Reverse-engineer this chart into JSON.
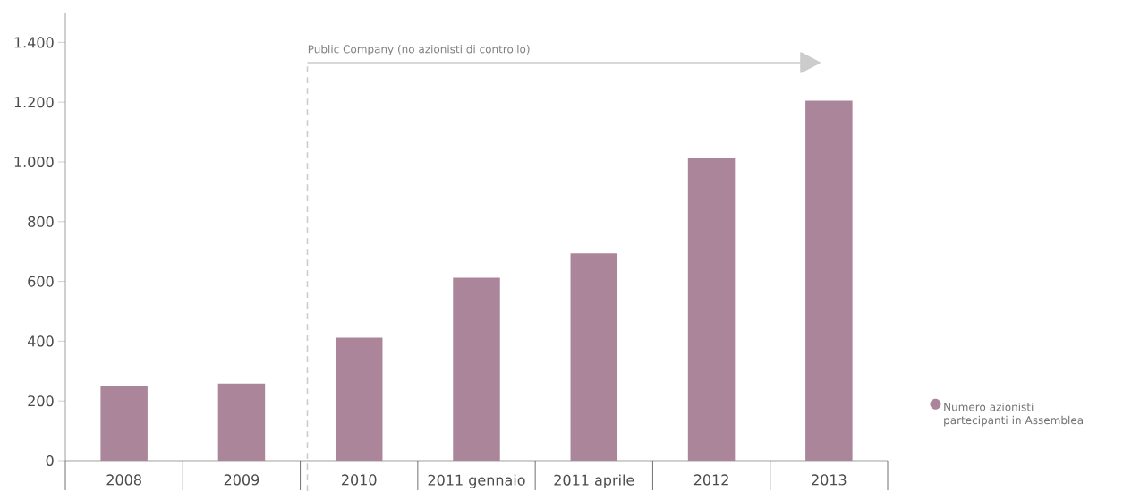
{
  "chart_data": {
    "type": "bar",
    "categories": [
      "2008",
      "2009",
      "2010",
      "2011 gennaio",
      "2011 aprile",
      "2012",
      "2013"
    ],
    "series": [
      {
        "name": "Numero azionisti partecipanti in Assemblea",
        "color": "#ab869b",
        "values": [
          250,
          258,
          412,
          612,
          694,
          1012,
          1205
        ]
      }
    ],
    "ylim": [
      0,
      1500
    ],
    "yticks": [
      {
        "value": 0,
        "label": "0"
      },
      {
        "value": 200,
        "label": "200"
      },
      {
        "value": 400,
        "label": "400"
      },
      {
        "value": 600,
        "label": "600"
      },
      {
        "value": 800,
        "label": "800"
      },
      {
        "value": 1000,
        "label": "1.000"
      },
      {
        "value": 1200,
        "label": "1.200"
      },
      {
        "value": 1400,
        "label": "1.400"
      }
    ],
    "ref_lines": [
      {
        "axis": "x",
        "value": "2010",
        "label": "Public Company (no azionisti di controllo)",
        "color": "#cccccc",
        "line_style": "dashed"
      }
    ],
    "legend": "right",
    "grid": false
  }
}
